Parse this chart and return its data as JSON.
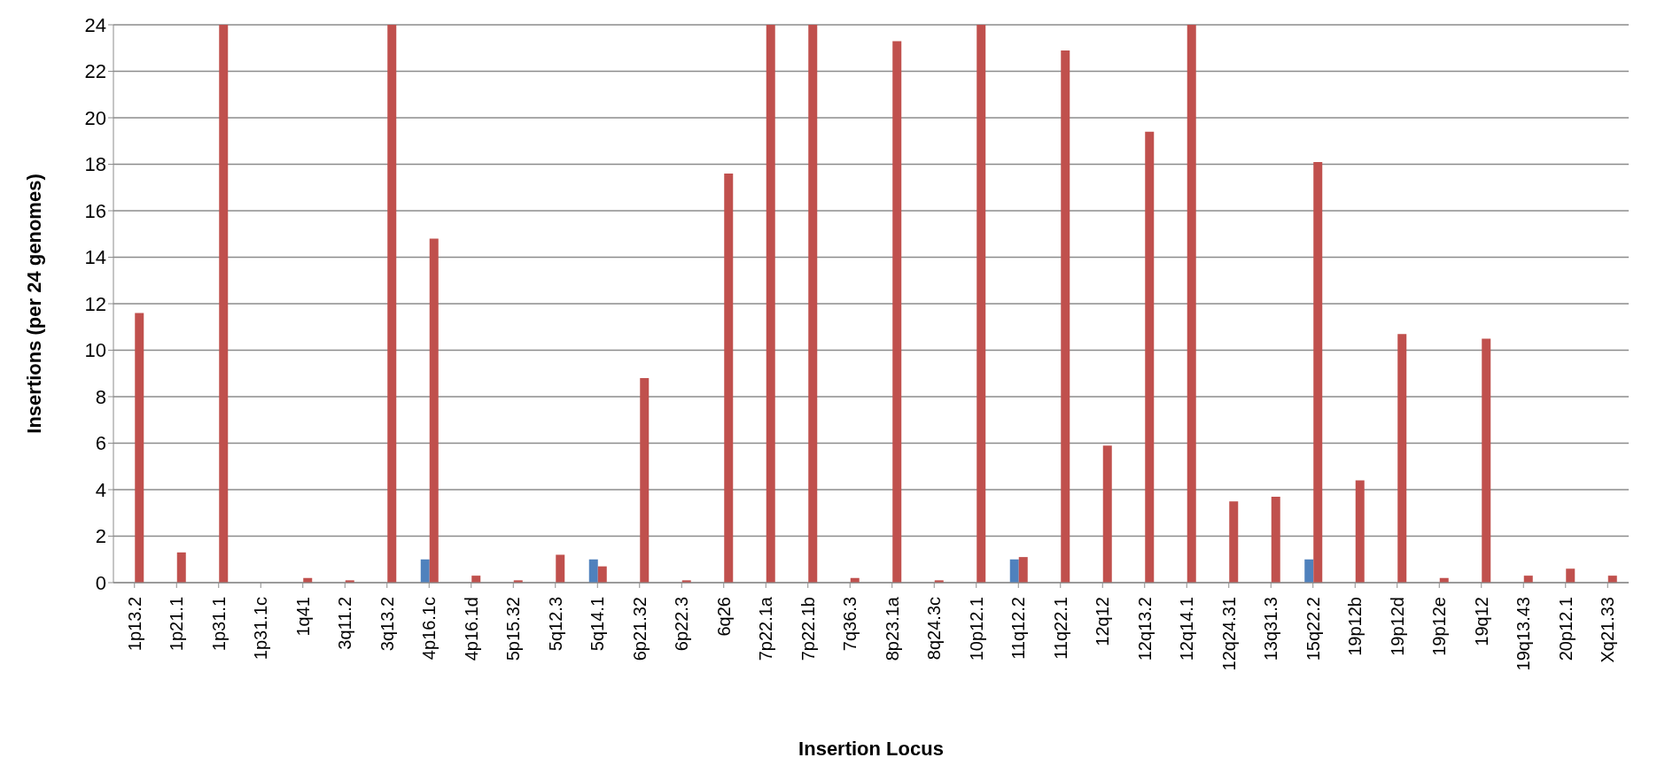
{
  "chart_data": {
    "type": "bar",
    "xlabel": "Insertion Locus",
    "ylabel": "Insertions (per 24 genomes)",
    "categories": [
      "1p13.2",
      "1p21.1",
      "1p31.1",
      "1p31.1c",
      "1q41",
      "3q11.2",
      "3q13.2",
      "4p16.1c",
      "4p16.1d",
      "5p15.32",
      "5q12.3",
      "5q14.1",
      "6p21.32",
      "6p22.3",
      "6q26",
      "7p22.1a",
      "7p22.1b",
      "7q36.3",
      "8p23.1a",
      "8q24.3c",
      "10p12.1",
      "11q12.2",
      "11q22.1",
      "12q12",
      "12q13.2",
      "12q14.1",
      "12q24.31",
      "13q31.3",
      "15q22.2",
      "19p12b",
      "19p12d",
      "19p12e",
      "19q12",
      "19q13.43",
      "20p12.1",
      "Xq21.33"
    ],
    "series": [
      {
        "color": "#4f81bd",
        "values": [
          0,
          0,
          0,
          0,
          0,
          0,
          0,
          1,
          0,
          0,
          0,
          1,
          0,
          0,
          0,
          0,
          0,
          0,
          0,
          0,
          0,
          1,
          0,
          0,
          0,
          0,
          0,
          0,
          1,
          0,
          0,
          0,
          0,
          0,
          0,
          0
        ]
      },
      {
        "color": "#c0504d",
        "values": [
          11.6,
          1.3,
          24,
          0,
          0.2,
          0.1,
          24,
          14.8,
          0.3,
          0.1,
          1.2,
          0.7,
          8.8,
          0.1,
          17.6,
          24,
          24,
          0.2,
          23.3,
          0.1,
          24,
          1.1,
          22.9,
          5.9,
          19.4,
          24,
          3.5,
          3.7,
          18.1,
          4.4,
          10.7,
          0.2,
          10.5,
          0.3,
          0.6,
          0.3
        ]
      }
    ],
    "ylim": [
      0,
      24
    ],
    "yticks": [
      0,
      2,
      4,
      6,
      8,
      10,
      12,
      14,
      16,
      18,
      20,
      22,
      24
    ],
    "grid": "y",
    "legend": false
  }
}
